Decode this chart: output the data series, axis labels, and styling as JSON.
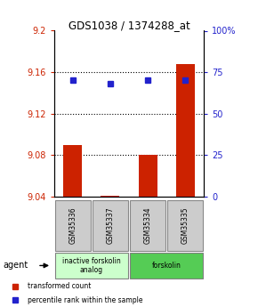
{
  "title": "GDS1038 / 1374288_at",
  "samples": [
    "GSM35336",
    "GSM35337",
    "GSM35334",
    "GSM35335"
  ],
  "transformed_counts": [
    9.09,
    9.041,
    9.08,
    9.168
  ],
  "percentile_ranks": [
    70,
    68,
    70,
    70
  ],
  "ylim_left": [
    9.04,
    9.2
  ],
  "ylim_right": [
    0,
    100
  ],
  "yticks_left": [
    9.04,
    9.08,
    9.12,
    9.16,
    9.2
  ],
  "yticks_right": [
    0,
    25,
    50,
    75,
    100
  ],
  "ytick_labels_left": [
    "9.04",
    "9.08",
    "9.12",
    "9.16",
    "9.2"
  ],
  "ytick_labels_right": [
    "0",
    "25",
    "50",
    "75",
    "100%"
  ],
  "bar_color": "#cc2200",
  "dot_color": "#2222cc",
  "grid_color": "#000000",
  "agent_groups": [
    {
      "label": "inactive forskolin\nanalog",
      "samples": [
        0,
        1
      ],
      "color": "#ccffcc"
    },
    {
      "label": "forskolin",
      "samples": [
        2,
        3
      ],
      "color": "#55cc55"
    }
  ],
  "legend_items": [
    {
      "color": "#cc2200",
      "label": "transformed count"
    },
    {
      "color": "#2222cc",
      "label": "percentile rank within the sample"
    }
  ],
  "ylabel_left_color": "#cc2200",
  "ylabel_right_color": "#2222cc",
  "sample_box_color": "#cccccc",
  "sample_box_edge": "#888888",
  "base_value": 9.04
}
